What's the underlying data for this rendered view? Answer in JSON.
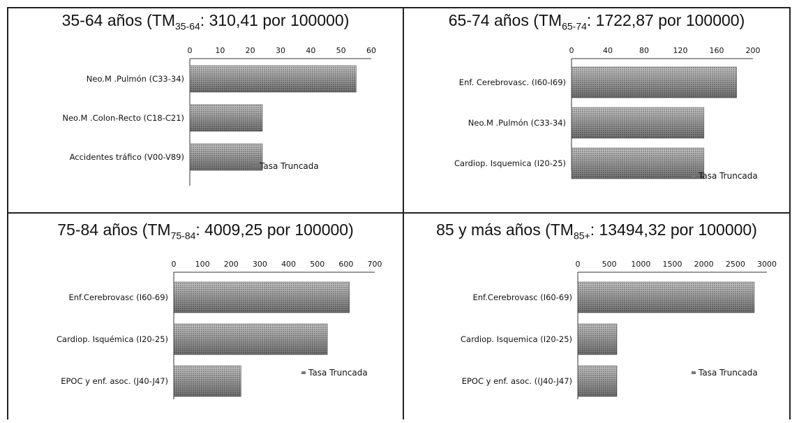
{
  "chart_data": [
    {
      "type": "bar",
      "orientation": "horizontal",
      "title": {
        "prefix": "35-64 años (TM",
        "sub": "35-64",
        "suffix": ": 310,41 por 100000)"
      },
      "categories": [
        "Neo.M .Pulmón (C33-34)",
        "Neo.M .Colon-Recto (C18-C21)",
        "Accidentes tráfico (V00-V89)"
      ],
      "values": [
        55,
        24,
        24
      ],
      "xlim": [
        0,
        60
      ],
      "ticks": [
        0,
        10,
        20,
        30,
        40,
        50,
        60
      ],
      "legend": "Tasa Truncada",
      "legend_position": "right"
    },
    {
      "type": "bar",
      "orientation": "horizontal",
      "title": {
        "prefix": "65-74  años (TM",
        "sub": "65-74",
        "suffix": ": 1722,87 por 100000)"
      },
      "categories": [
        "Enf. Cerebrovasc. (I60-I69)",
        "Neo.M .Pulmón (C33-34)",
        "Cardiop. Isquemica (I20-25)"
      ],
      "values": [
        182,
        146,
        146
      ],
      "xlim": [
        0,
        200
      ],
      "ticks": [
        0,
        40,
        80,
        120,
        160,
        200
      ],
      "legend": "Tasa Truncada",
      "legend_position": "bottom-right"
    },
    {
      "type": "bar",
      "orientation": "horizontal",
      "title": {
        "prefix": "75-84 años (TM",
        "sub": "75-84",
        "suffix": ": 4009,25 por 100000)"
      },
      "categories": [
        "Enf.Cerebrovasc (I60-69)",
        "Cardiop. Isquémica (I20-25)",
        "EPOC y enf. asoc. (J40-J47)"
      ],
      "values": [
        612,
        535,
        234
      ],
      "xlim": [
        0,
        700
      ],
      "ticks": [
        0,
        100,
        200,
        300,
        400,
        500,
        600,
        700
      ],
      "legend": "Tasa Truncada",
      "legend_position": "right"
    },
    {
      "type": "bar",
      "orientation": "horizontal",
      "title": {
        "prefix": "85 y más años (TM",
        "sub": "85+",
        "suffix": ": 13494,32 por 100000)"
      },
      "categories": [
        "Enf.Cerebrovasc (I60-69)",
        "Cardiop. Isquemica (I20-25)",
        "EPOC y enf. asoc. ((J40-J47)"
      ],
      "values": [
        2800,
        620,
        620
      ],
      "xlim": [
        0,
        3000
      ],
      "ticks": [
        0,
        500,
        1000,
        1500,
        2000,
        2500,
        3000
      ],
      "legend": "Tasa Truncada",
      "legend_position": "right"
    }
  ]
}
